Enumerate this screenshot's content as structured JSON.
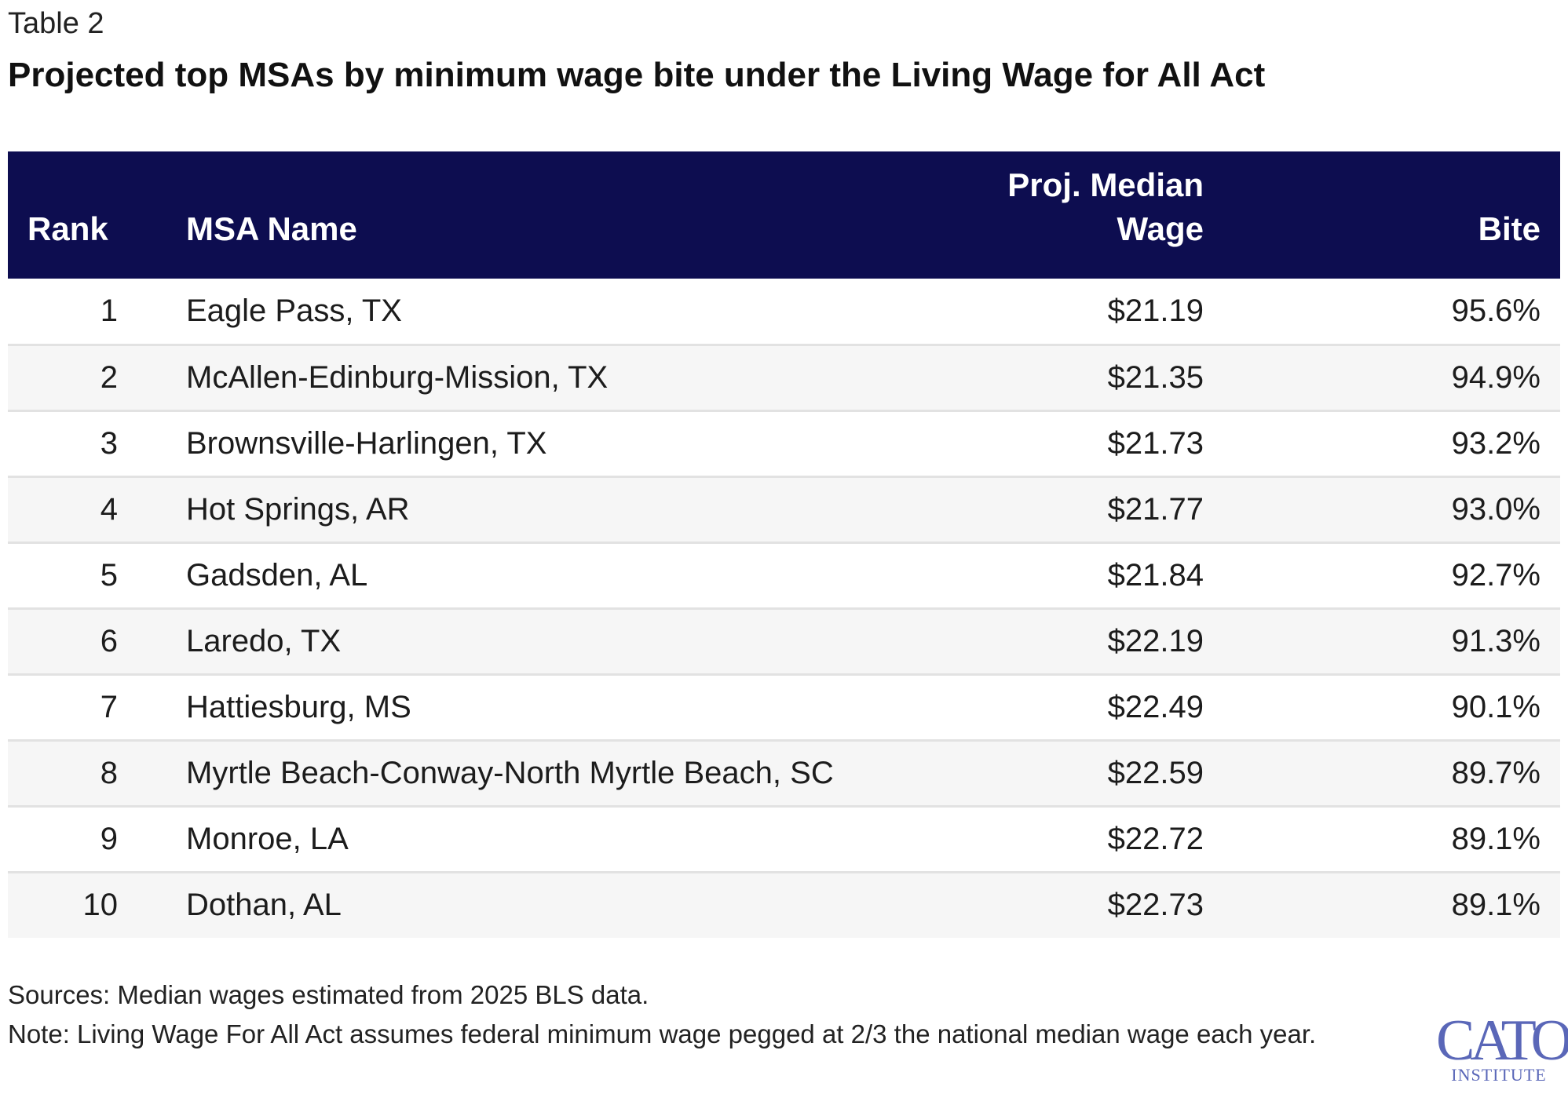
{
  "table_label": "Table 2",
  "title": "Projected top MSAs by minimum wage bite under the Living Wage for All Act",
  "columns": {
    "rank": "Rank",
    "name": "MSA Name",
    "wage_line1": "Proj. Median",
    "wage_line2": "Wage",
    "bite": "Bite"
  },
  "rows": [
    {
      "rank": "1",
      "name": "Eagle Pass, TX",
      "wage": "$21.19",
      "bite": "95.6%"
    },
    {
      "rank": "2",
      "name": "McAllen-Edinburg-Mission, TX",
      "wage": "$21.35",
      "bite": "94.9%"
    },
    {
      "rank": "3",
      "name": "Brownsville-Harlingen, TX",
      "wage": "$21.73",
      "bite": "93.2%"
    },
    {
      "rank": "4",
      "name": "Hot Springs, AR",
      "wage": "$21.77",
      "bite": "93.0%"
    },
    {
      "rank": "5",
      "name": "Gadsden, AL",
      "wage": "$21.84",
      "bite": "92.7%"
    },
    {
      "rank": "6",
      "name": "Laredo, TX",
      "wage": "$22.19",
      "bite": "91.3%"
    },
    {
      "rank": "7",
      "name": "Hattiesburg, MS",
      "wage": "$22.49",
      "bite": "90.1%"
    },
    {
      "rank": "8",
      "name": "Myrtle Beach-Conway-North Myrtle Beach, SC",
      "wage": "$22.59",
      "bite": "89.7%"
    },
    {
      "rank": "9",
      "name": "Monroe, LA",
      "wage": "$22.72",
      "bite": "89.1%"
    },
    {
      "rank": "10",
      "name": "Dothan, AL",
      "wage": "$22.73",
      "bite": "89.1%"
    }
  ],
  "sources": "Sources: Median wages estimated from 2025 BLS data.",
  "note": "Note: Living Wage For All Act assumes federal minimum wage pegged at 2/3 the national median wage each year.",
  "logo": {
    "main": "CATO",
    "sub": "INSTITUTE"
  },
  "colors": {
    "header_bg": "#0d0d50",
    "header_text": "#ffffff",
    "row_alt": "#f6f6f6",
    "logo": "#5a67b8"
  }
}
